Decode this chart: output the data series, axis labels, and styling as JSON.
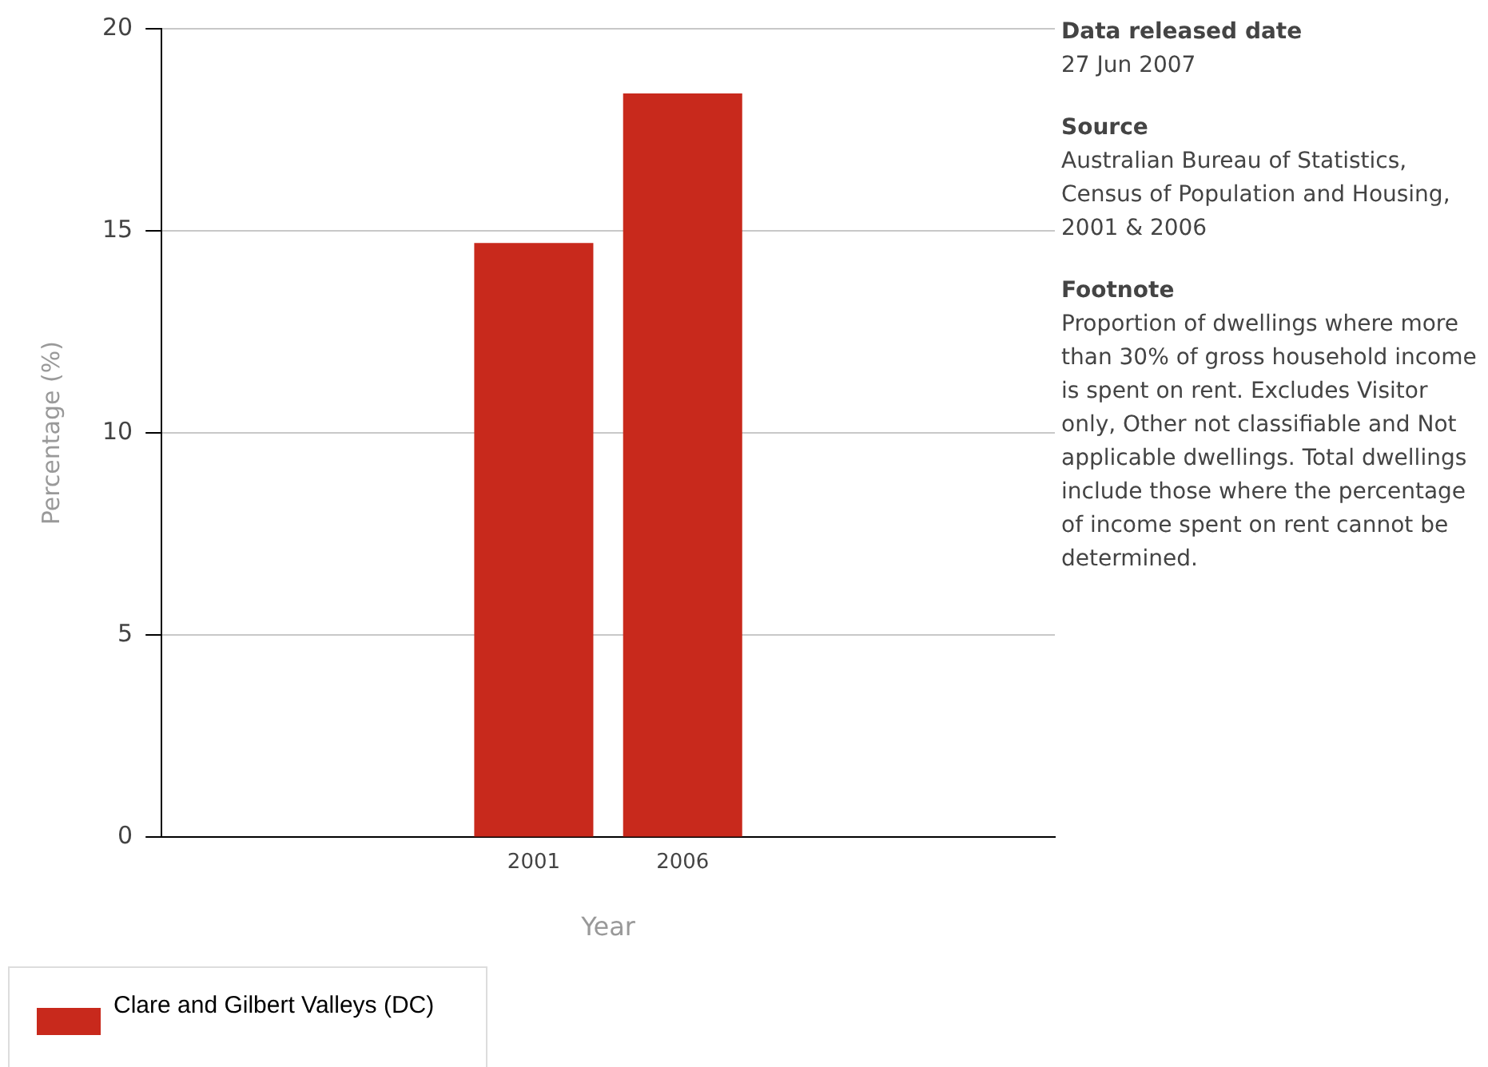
{
  "chart_data": {
    "type": "bar",
    "xlabel": "Year",
    "ylabel": "Percentage (%)",
    "categories": [
      "2001",
      "2006"
    ],
    "series": [
      {
        "name": "Clare and Gilbert Valleys (DC)",
        "color": "#c8291c",
        "values": [
          14.7,
          18.4
        ]
      }
    ],
    "ylim": [
      0,
      20
    ],
    "yticks": [
      0,
      5,
      10,
      15,
      20
    ],
    "grid": "y",
    "legend": "bottom left",
    "annotations": [
      "Data released date",
      "27 Jun 2007",
      "Source",
      "Australian Bureau of Statistics, Census of Population and Housing, 2001 & 2006",
      "Footnote",
      "Proportion of dwellings where more than 30% of gross household income is spent on rent. Excludes Visitor only, Other not classifiable and Not applicable dwellings. Total dwellings include those where the percentage of income spent on rent cannot be determined."
    ]
  }
}
